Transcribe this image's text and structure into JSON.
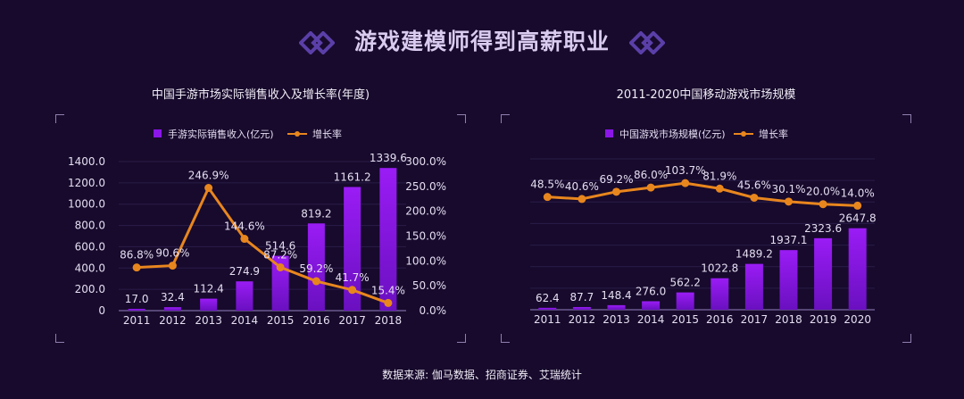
{
  "page_title": "游戏建模师得到高薪职业",
  "source": "数据来源: 伽马数据、招商证券、艾瑞统计",
  "colors": {
    "background": "#170a2c",
    "bar": "#8a16e8",
    "line": "#e8861e",
    "title": "#d9cbef"
  },
  "chart_data": [
    {
      "type": "bar+line",
      "title": "中国手游市场实际销售收入及增长率(年度)",
      "categories": [
        "2011",
        "2012",
        "2013",
        "2014",
        "2015",
        "2016",
        "2017",
        "2018"
      ],
      "series": [
        {
          "name": "手游实际销售收入(亿元)",
          "type": "bar",
          "axis": "left",
          "values": [
            17.0,
            32.4,
            112.4,
            274.9,
            514.6,
            819.2,
            1161.2,
            1339.6
          ],
          "labels": [
            "17.0",
            "32.4",
            "112.4",
            "274.9",
            "514.6",
            "819.2",
            "1161.2",
            "1339.6"
          ]
        },
        {
          "name": "增长率",
          "type": "line",
          "axis": "right",
          "values": [
            86.8,
            90.6,
            246.9,
            144.6,
            87.2,
            59.2,
            41.7,
            15.4
          ],
          "labels": [
            "86.8%",
            "90.6%",
            "246.9%",
            "144.6%",
            "87.2%",
            "59.2%",
            "41.7%",
            "15.4%"
          ]
        }
      ],
      "y_left": {
        "ylim": [
          0,
          1400
        ],
        "ticks": [
          "0",
          "200.0",
          "400.0",
          "600.0",
          "800.0",
          "1000.0",
          "1200.0",
          "1400.0"
        ]
      },
      "y_right": {
        "ylim": [
          0,
          300
        ],
        "ticks": [
          "0.0%",
          "50.0%",
          "100.0%",
          "150.0%",
          "200.0%",
          "250.0%",
          "300.0%"
        ]
      },
      "legend": "top",
      "grid": true
    },
    {
      "type": "bar+line",
      "title": "2011-2020中国移动游戏市场规模",
      "categories": [
        "2011",
        "2012",
        "2013",
        "2014",
        "2015",
        "2016",
        "2017",
        "2018",
        "2019",
        "2020"
      ],
      "series": [
        {
          "name": "中国游戏市场规模(亿元)",
          "type": "bar",
          "axis": "left",
          "values": [
            62.4,
            87.7,
            148.4,
            276.0,
            562.2,
            1022.8,
            1489.2,
            1937.1,
            2323.6,
            2647.8
          ],
          "labels": [
            "62.4",
            "87.7",
            "148.4",
            "276.0",
            "562.2",
            "1022.8",
            "1489.2",
            "1937.1",
            "2323.6",
            "2647.8"
          ]
        },
        {
          "name": "增长率",
          "type": "line",
          "axis": "right",
          "values": [
            48.5,
            40.6,
            69.2,
            86.0,
            103.7,
            81.9,
            45.6,
            30.1,
            20.0,
            14.0
          ],
          "labels": [
            "48.5%",
            "40.6%",
            "69.2%",
            "86.0%",
            "103.7%",
            "81.9%",
            "45.6%",
            "30.1%",
            "20.0%",
            "14.0%"
          ]
        }
      ],
      "y_left": {
        "ylim": [
          0,
          4900
        ],
        "ticks": []
      },
      "y_right": {
        "ylim": [
          -400,
          200
        ],
        "ticks": []
      },
      "legend": "top",
      "grid": true
    }
  ]
}
